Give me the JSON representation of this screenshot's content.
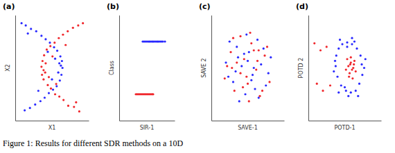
{
  "caption": "Figure 1: Results for different SDR methods on a 10D",
  "chart_data": [
    {
      "type": "scatter",
      "title": "(a)",
      "x_label": "X1",
      "y_label": "X2",
      "xlim": [
        -3.5,
        3.5
      ],
      "ylim": [
        -2.3,
        2.3
      ],
      "tick_labels": false,
      "marker": "circle",
      "series": [
        {
          "color": "#2a2aff",
          "x": [
            1.0,
            0.95,
            0.9,
            0.8,
            0.75,
            0.5,
            0.45,
            0.2,
            0.1,
            -0.2,
            -0.3,
            -0.6,
            -0.7,
            -1.0,
            -1.1,
            -1.5,
            -1.6,
            -2.0,
            -2.1,
            -2.5,
            -2.6,
            -2.9,
            0.85,
            0.6,
            0.7,
            0.3,
            0.0,
            -0.4,
            -1.3,
            -2.3
          ],
          "values": [
            0.0,
            0.3,
            -0.3,
            0.5,
            -0.55,
            0.75,
            -0.8,
            0.9,
            -0.95,
            1.1,
            -1.1,
            1.25,
            -1.3,
            1.4,
            -1.45,
            1.6,
            -1.6,
            1.7,
            -1.75,
            1.85,
            -1.85,
            1.95,
            0.1,
            -0.2,
            0.2,
            0.4,
            -0.5,
            0.7,
            -1.0,
            1.5
          ]
        },
        {
          "color": "#f0282d",
          "x": [
            -1.0,
            -0.9,
            -0.95,
            -0.75,
            -0.8,
            -0.5,
            -0.4,
            -0.15,
            -0.1,
            0.25,
            0.3,
            0.65,
            0.7,
            1.05,
            1.1,
            1.5,
            1.55,
            2.0,
            2.1,
            2.5,
            2.6,
            2.95,
            -0.8,
            -0.6,
            -0.65,
            -0.3,
            0.05,
            0.4,
            1.3,
            2.3
          ],
          "values": [
            0.05,
            0.3,
            -0.3,
            0.55,
            -0.5,
            0.8,
            -0.75,
            0.95,
            -0.9,
            1.1,
            -1.15,
            1.3,
            -1.25,
            1.45,
            -1.4,
            1.6,
            -1.65,
            1.75,
            -1.7,
            1.85,
            -1.9,
            1.95,
            -0.1,
            0.2,
            -0.2,
            -0.4,
            0.5,
            -0.7,
            1.0,
            -1.5
          ]
        }
      ]
    },
    {
      "type": "scatter",
      "title": "(b)",
      "x_label": "SIR-1",
      "y_label": "Class",
      "xlim": [
        -4,
        4
      ],
      "ylim": [
        -0.5,
        1.5
      ],
      "tick_labels": false,
      "marker": "circle",
      "series": [
        {
          "color": "#2a2aff",
          "x": [
            -0.6,
            -0.4,
            -0.2,
            0.0,
            0.2,
            0.35,
            0.5,
            0.7,
            0.85,
            1.0,
            1.2,
            1.4,
            1.55,
            1.7,
            1.9,
            2.1,
            2.3,
            2.6
          ],
          "values": [
            1,
            1,
            1,
            1,
            1,
            1,
            1,
            1,
            1,
            1,
            1,
            1,
            1,
            1,
            1,
            1,
            1,
            1
          ]
        },
        {
          "color": "#f0282d",
          "x": [
            -1.6,
            -1.45,
            -1.3,
            -1.15,
            -1.0,
            -0.85,
            -0.7,
            -0.55,
            -0.4,
            -0.25,
            -0.1,
            0.05,
            0.2,
            0.35,
            0.5,
            0.65,
            0.8,
            0.9
          ],
          "values": [
            0,
            0,
            0,
            0,
            0,
            0,
            0,
            0,
            0,
            0,
            0,
            0,
            0,
            0,
            0,
            0,
            0,
            0
          ]
        }
      ]
    },
    {
      "type": "scatter",
      "title": "(c)",
      "x_label": "SAVE-1",
      "y_label": "SAVE 2",
      "xlim": [
        -3,
        3
      ],
      "ylim": [
        -3,
        3
      ],
      "tick_labels": false,
      "marker": "circle",
      "series": [
        {
          "color": "#2a2aff",
          "x": [
            -1.8,
            -1.2,
            -0.9,
            -0.5,
            -0.2,
            0.1,
            0.4,
            0.8,
            1.1,
            1.5,
            1.9,
            -1.5,
            -0.7,
            0.0,
            0.6,
            1.3,
            -1.0,
            -0.3,
            0.3,
            0.9,
            -1.6,
            1.7,
            -0.1,
            0.5,
            -0.8
          ],
          "values": [
            0.3,
            -0.8,
            1.2,
            0.1,
            -1.5,
            0.9,
            -0.4,
            1.6,
            0.2,
            -1.0,
            0.6,
            1.5,
            -1.9,
            0.4,
            -1.2,
            1.1,
            -0.2,
            0.8,
            -0.7,
            -1.7,
            -0.5,
            -0.3,
            1.9,
            0.0,
            0.6
          ]
        },
        {
          "color": "#f0282d",
          "x": [
            -1.9,
            -1.4,
            -1.1,
            -0.6,
            -0.3,
            0.0,
            0.3,
            0.7,
            1.0,
            1.4,
            1.8,
            -1.7,
            -0.9,
            -0.1,
            0.5,
            1.2,
            -1.2,
            -0.4,
            0.2,
            0.8,
            -0.6,
            1.6,
            0.1,
            0.9,
            -1.3
          ],
          "values": [
            -0.6,
            0.9,
            -1.3,
            1.8,
            0.5,
            -0.9,
            1.4,
            -0.1,
            -1.6,
            0.7,
            -0.8,
            0.1,
            0.3,
            -0.5,
            1.0,
            -1.3,
            1.7,
            -1.1,
            2.0,
            0.4,
            -0.3,
            1.2,
            -1.9,
            1.0,
            0.0
          ]
        }
      ]
    },
    {
      "type": "scatter",
      "title": "(d)",
      "x_label": "POTD-1",
      "y_label": "POTD 2",
      "xlim": [
        -3,
        3
      ],
      "ylim": [
        -3,
        3
      ],
      "tick_labels": false,
      "marker": "circle",
      "series": [
        {
          "color": "#2a2aff",
          "x": [
            1.4,
            1.3,
            1.0,
            0.6,
            0.2,
            -0.2,
            -0.5,
            -0.7,
            -0.75,
            -0.6,
            -0.3,
            0.1,
            0.5,
            0.9,
            1.2,
            1.45,
            1.6,
            -0.9,
            -0.4,
            0.3,
            0.8,
            1.7,
            0.0,
            -0.8,
            1.1,
            0.6,
            -0.5,
            0.2
          ],
          "values": [
            0.2,
            0.7,
            1.1,
            1.35,
            1.45,
            1.35,
            1.1,
            0.7,
            0.1,
            -0.5,
            -1.0,
            -1.3,
            -1.4,
            -1.3,
            -0.9,
            -0.4,
            0.0,
            -0.2,
            1.6,
            -1.6,
            1.5,
            0.5,
            -1.1,
            0.4,
            -1.6,
            1.7,
            -1.4,
            1.2
          ]
        },
        {
          "color": "#f0282d",
          "x": [
            0.3,
            0.5,
            0.7,
            0.4,
            0.6,
            0.2,
            0.8,
            0.5,
            0.35,
            0.65,
            0.1,
            0.9,
            -1.5,
            -2.0,
            -2.5,
            -1.2,
            -1.8,
            -2.3,
            0.45,
            0.75
          ],
          "values": [
            0.1,
            0.3,
            0.0,
            -0.3,
            -0.1,
            0.5,
            0.4,
            0.6,
            -0.5,
            -0.6,
            -0.1,
            -0.2,
            1.2,
            1.0,
            1.4,
            -1.0,
            -1.3,
            -0.9,
            0.2,
            0.2
          ]
        }
      ]
    }
  ]
}
